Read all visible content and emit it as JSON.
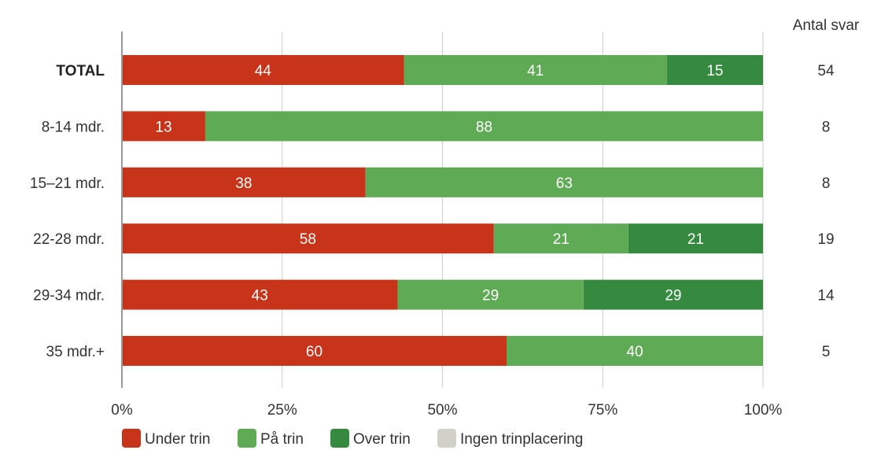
{
  "chart_data": {
    "type": "bar",
    "orientation": "horizontal",
    "stacked": true,
    "categories": [
      "TOTAL",
      "8-14 mdr.",
      "15–21 mdr.",
      "22-28 mdr.",
      "29-34 mdr.",
      "35 mdr.+"
    ],
    "category_bold": [
      true,
      false,
      false,
      false,
      false,
      false
    ],
    "series": [
      {
        "name": "Under trin",
        "color": "#c8341a",
        "values": [
          44,
          13,
          38,
          58,
          43,
          60
        ]
      },
      {
        "name": "På trin",
        "color": "#5faa55",
        "values": [
          41,
          88,
          63,
          21,
          29,
          40
        ]
      },
      {
        "name": "Over trin",
        "color": "#358a3f",
        "values": [
          15,
          0,
          0,
          21,
          29,
          0
        ]
      },
      {
        "name": "Ingen trinplacering",
        "color": "#d2d1c8",
        "values": [
          0,
          0,
          0,
          0,
          0,
          0
        ]
      }
    ],
    "xlim": [
      0,
      100
    ],
    "ticks": [
      "0%",
      "25%",
      "50%",
      "75%",
      "100%"
    ],
    "grid": true,
    "legend_position": "bottom-left",
    "count_header": "Antal svar",
    "counts": [
      "54",
      "8",
      "8",
      "19",
      "14",
      "5"
    ]
  }
}
